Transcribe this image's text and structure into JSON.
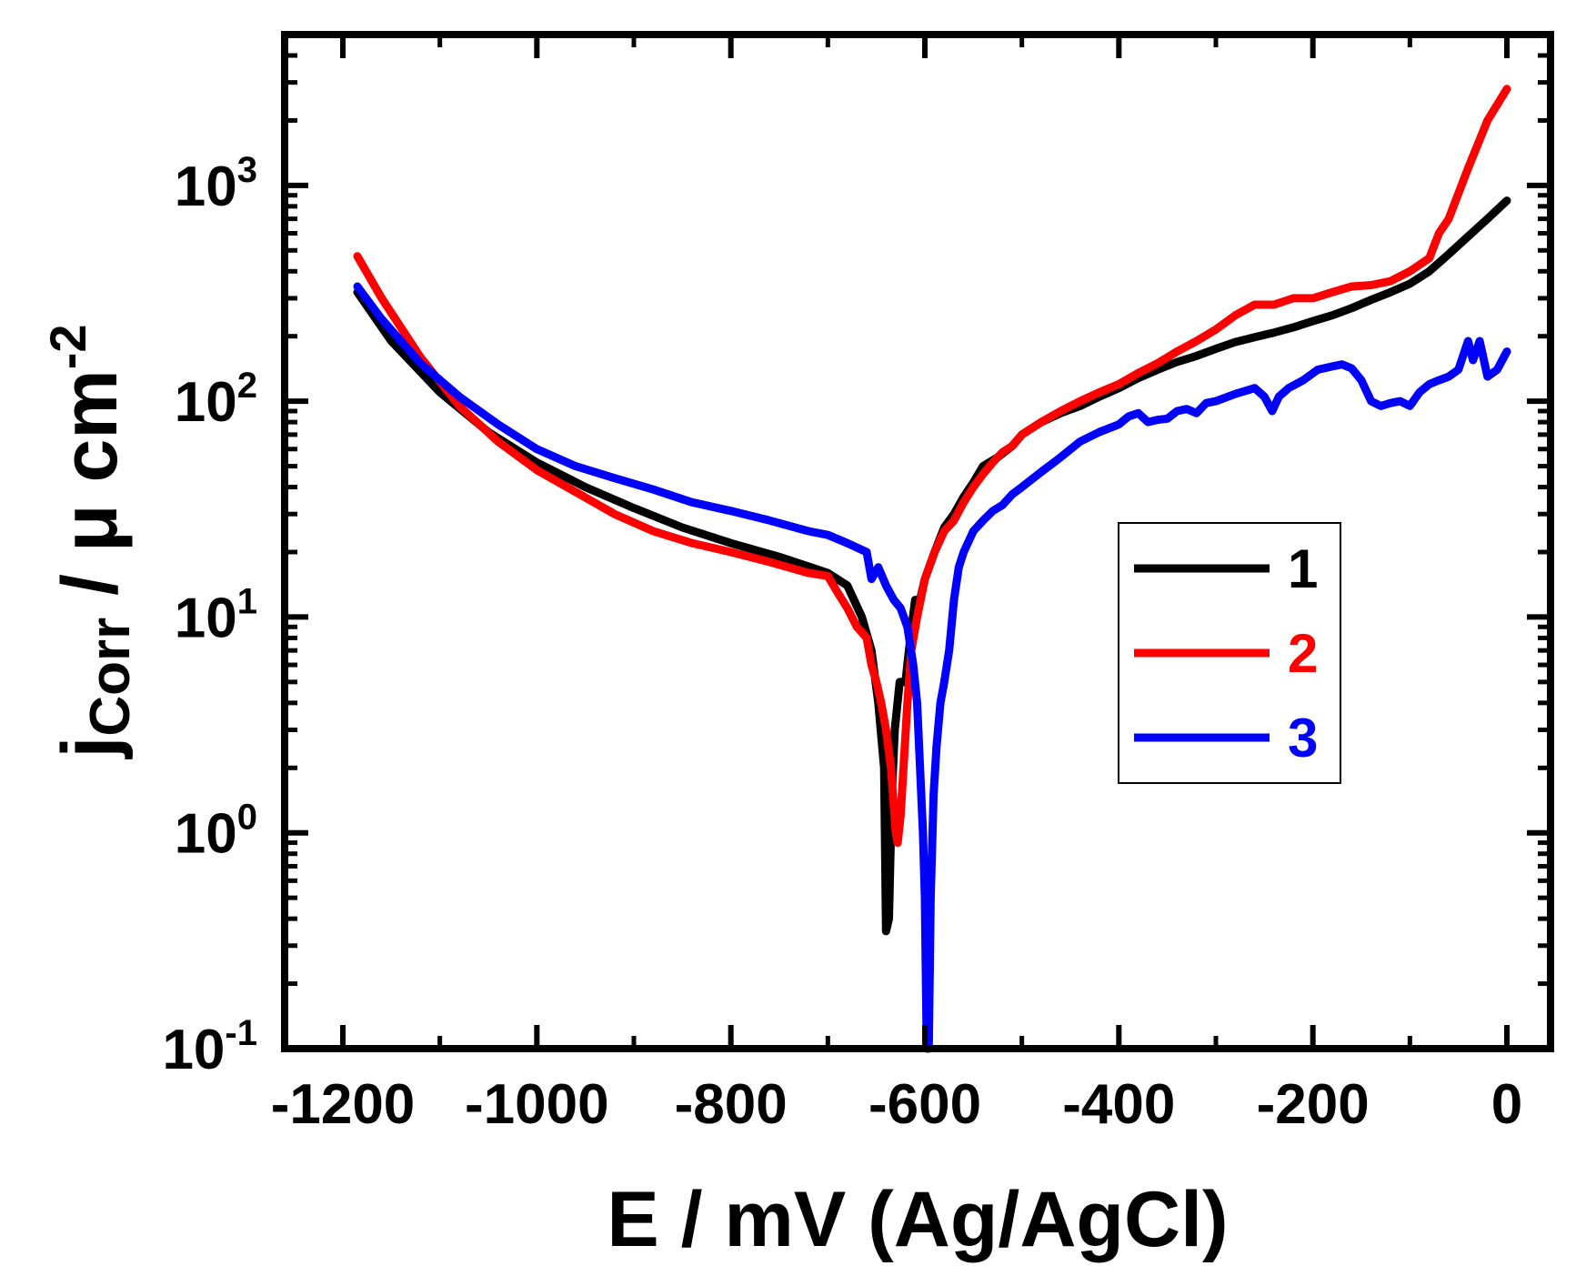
{
  "chart_data": {
    "type": "line",
    "title": "",
    "xlabel": "E / mV (Ag/AgCl)",
    "ylabel": {
      "main": "j",
      "subscript": "Corr",
      "units": " / μ cm",
      "exponent": "-2"
    },
    "x_scale": "linear",
    "y_scale": "log",
    "xlim": [
      -1260,
      45
    ],
    "ylim": [
      0.1,
      5000
    ],
    "x_ticks": [
      {
        "value": -1200,
        "label": "-1200"
      },
      {
        "value": -1000,
        "label": "-1000"
      },
      {
        "value": -800,
        "label": "-800"
      },
      {
        "value": -600,
        "label": "-600"
      },
      {
        "value": -400,
        "label": "-400"
      },
      {
        "value": -200,
        "label": "-200"
      },
      {
        "value": 0,
        "label": "0"
      }
    ],
    "x_minor_ticks": [
      -1100,
      -900,
      -700,
      -500,
      -300,
      -100
    ],
    "y_ticks": [
      {
        "value": 0.1,
        "base": "10",
        "exp": "-1"
      },
      {
        "value": 1,
        "base": "10",
        "exp": "0"
      },
      {
        "value": 10,
        "base": "10",
        "exp": "1"
      },
      {
        "value": 100,
        "base": "10",
        "exp": "2"
      },
      {
        "value": 1000,
        "base": "10",
        "exp": "3"
      }
    ],
    "legend_position": "center-right",
    "series": [
      {
        "name": "1",
        "color": "#000000",
        "points": [
          [
            -1185,
            320
          ],
          [
            -1150,
            190
          ],
          [
            -1100,
            110
          ],
          [
            -1050,
            72
          ],
          [
            -1000,
            52
          ],
          [
            -950,
            40
          ],
          [
            -900,
            32
          ],
          [
            -850,
            26
          ],
          [
            -800,
            22
          ],
          [
            -750,
            19
          ],
          [
            -700,
            16
          ],
          [
            -680,
            14
          ],
          [
            -665,
            10
          ],
          [
            -655,
            7
          ],
          [
            -648,
            4
          ],
          [
            -642,
            2
          ],
          [
            -640,
            0.35
          ],
          [
            -637,
            0.4
          ],
          [
            -634,
            1.5
          ],
          [
            -631,
            3
          ],
          [
            -626,
            5
          ],
          [
            -620,
            5
          ],
          [
            -615,
            8
          ],
          [
            -610,
            12
          ],
          [
            -605,
            12
          ],
          [
            -600,
            15
          ],
          [
            -590,
            20
          ],
          [
            -580,
            26
          ],
          [
            -570,
            30
          ],
          [
            -560,
            36
          ],
          [
            -550,
            42
          ],
          [
            -540,
            50
          ],
          [
            -525,
            55
          ],
          [
            -510,
            62
          ],
          [
            -500,
            70
          ],
          [
            -480,
            80
          ],
          [
            -460,
            88
          ],
          [
            -440,
            95
          ],
          [
            -420,
            105
          ],
          [
            -400,
            115
          ],
          [
            -380,
            128
          ],
          [
            -360,
            140
          ],
          [
            -340,
            152
          ],
          [
            -320,
            162
          ],
          [
            -300,
            175
          ],
          [
            -280,
            188
          ],
          [
            -260,
            198
          ],
          [
            -240,
            208
          ],
          [
            -220,
            220
          ],
          [
            -200,
            235
          ],
          [
            -180,
            250
          ],
          [
            -160,
            270
          ],
          [
            -140,
            295
          ],
          [
            -120,
            320
          ],
          [
            -100,
            350
          ],
          [
            -80,
            400
          ],
          [
            -60,
            480
          ],
          [
            -40,
            580
          ],
          [
            -20,
            700
          ],
          [
            0,
            850
          ]
        ]
      },
      {
        "name": "2",
        "color": "#ff0000",
        "points": [
          [
            -1185,
            470
          ],
          [
            -1160,
            300
          ],
          [
            -1120,
            160
          ],
          [
            -1080,
            95
          ],
          [
            -1040,
            65
          ],
          [
            -1000,
            48
          ],
          [
            -960,
            38
          ],
          [
            -920,
            30
          ],
          [
            -880,
            25
          ],
          [
            -840,
            22
          ],
          [
            -800,
            20
          ],
          [
            -760,
            18
          ],
          [
            -720,
            16
          ],
          [
            -700,
            15.5
          ],
          [
            -690,
            13
          ],
          [
            -680,
            11
          ],
          [
            -670,
            9
          ],
          [
            -660,
            8
          ],
          [
            -655,
            6
          ],
          [
            -650,
            5
          ],
          [
            -645,
            4
          ],
          [
            -640,
            3
          ],
          [
            -635,
            2
          ],
          [
            -630,
            1
          ],
          [
            -628,
            0.9
          ],
          [
            -625,
            1.2
          ],
          [
            -622,
            2
          ],
          [
            -618,
            4
          ],
          [
            -614,
            7
          ],
          [
            -608,
            10
          ],
          [
            -600,
            15
          ],
          [
            -590,
            20
          ],
          [
            -580,
            25
          ],
          [
            -570,
            28
          ],
          [
            -560,
            34
          ],
          [
            -550,
            40
          ],
          [
            -540,
            46
          ],
          [
            -530,
            52
          ],
          [
            -520,
            58
          ],
          [
            -510,
            62
          ],
          [
            -500,
            70
          ],
          [
            -480,
            80
          ],
          [
            -460,
            90
          ],
          [
            -440,
            100
          ],
          [
            -420,
            110
          ],
          [
            -400,
            120
          ],
          [
            -380,
            135
          ],
          [
            -360,
            150
          ],
          [
            -340,
            170
          ],
          [
            -320,
            190
          ],
          [
            -300,
            215
          ],
          [
            -280,
            250
          ],
          [
            -260,
            280
          ],
          [
            -240,
            280
          ],
          [
            -220,
            300
          ],
          [
            -200,
            300
          ],
          [
            -180,
            320
          ],
          [
            -160,
            340
          ],
          [
            -140,
            345
          ],
          [
            -120,
            360
          ],
          [
            -100,
            400
          ],
          [
            -80,
            460
          ],
          [
            -70,
            600
          ],
          [
            -60,
            700
          ],
          [
            -40,
            1200
          ],
          [
            -20,
            2000
          ],
          [
            0,
            2800
          ]
        ]
      },
      {
        "name": "3",
        "color": "#0000ff",
        "points": [
          [
            -1185,
            340
          ],
          [
            -1160,
            240
          ],
          [
            -1120,
            150
          ],
          [
            -1080,
            105
          ],
          [
            -1040,
            78
          ],
          [
            -1000,
            60
          ],
          [
            -960,
            50
          ],
          [
            -920,
            44
          ],
          [
            -880,
            39
          ],
          [
            -840,
            34
          ],
          [
            -800,
            31
          ],
          [
            -760,
            28
          ],
          [
            -720,
            25
          ],
          [
            -700,
            24
          ],
          [
            -680,
            22
          ],
          [
            -660,
            20
          ],
          [
            -655,
            15
          ],
          [
            -648,
            17
          ],
          [
            -640,
            14
          ],
          [
            -632,
            12
          ],
          [
            -625,
            11
          ],
          [
            -618,
            9
          ],
          [
            -612,
            6
          ],
          [
            -608,
            4
          ],
          [
            -605,
            2
          ],
          [
            -602,
            1
          ],
          [
            -600,
            0.5
          ],
          [
            -598,
            0.1
          ],
          [
            -596,
            0.1
          ],
          [
            -594,
            0.5
          ],
          [
            -591,
            1.5
          ],
          [
            -588,
            2.5
          ],
          [
            -584,
            4
          ],
          [
            -580,
            5
          ],
          [
            -575,
            7
          ],
          [
            -570,
            12
          ],
          [
            -565,
            17
          ],
          [
            -560,
            20
          ],
          [
            -550,
            25
          ],
          [
            -540,
            28
          ],
          [
            -530,
            31
          ],
          [
            -520,
            33
          ],
          [
            -510,
            37
          ],
          [
            -500,
            40
          ],
          [
            -480,
            47
          ],
          [
            -460,
            55
          ],
          [
            -440,
            65
          ],
          [
            -420,
            72
          ],
          [
            -400,
            78
          ],
          [
            -390,
            85
          ],
          [
            -380,
            88
          ],
          [
            -370,
            80
          ],
          [
            -360,
            82
          ],
          [
            -350,
            83
          ],
          [
            -340,
            90
          ],
          [
            -330,
            92
          ],
          [
            -320,
            88
          ],
          [
            -310,
            98
          ],
          [
            -300,
            100
          ],
          [
            -280,
            108
          ],
          [
            -260,
            115
          ],
          [
            -250,
            105
          ],
          [
            -242,
            90
          ],
          [
            -235,
            105
          ],
          [
            -225,
            115
          ],
          [
            -210,
            125
          ],
          [
            -195,
            140
          ],
          [
            -180,
            145
          ],
          [
            -170,
            148
          ],
          [
            -160,
            142
          ],
          [
            -150,
            125
          ],
          [
            -140,
            100
          ],
          [
            -130,
            95
          ],
          [
            -120,
            98
          ],
          [
            -110,
            100
          ],
          [
            -100,
            95
          ],
          [
            -90,
            110
          ],
          [
            -80,
            120
          ],
          [
            -70,
            125
          ],
          [
            -60,
            130
          ],
          [
            -50,
            140
          ],
          [
            -40,
            190
          ],
          [
            -35,
            155
          ],
          [
            -28,
            190
          ],
          [
            -20,
            130
          ],
          [
            -10,
            140
          ],
          [
            0,
            170
          ]
        ]
      }
    ]
  }
}
